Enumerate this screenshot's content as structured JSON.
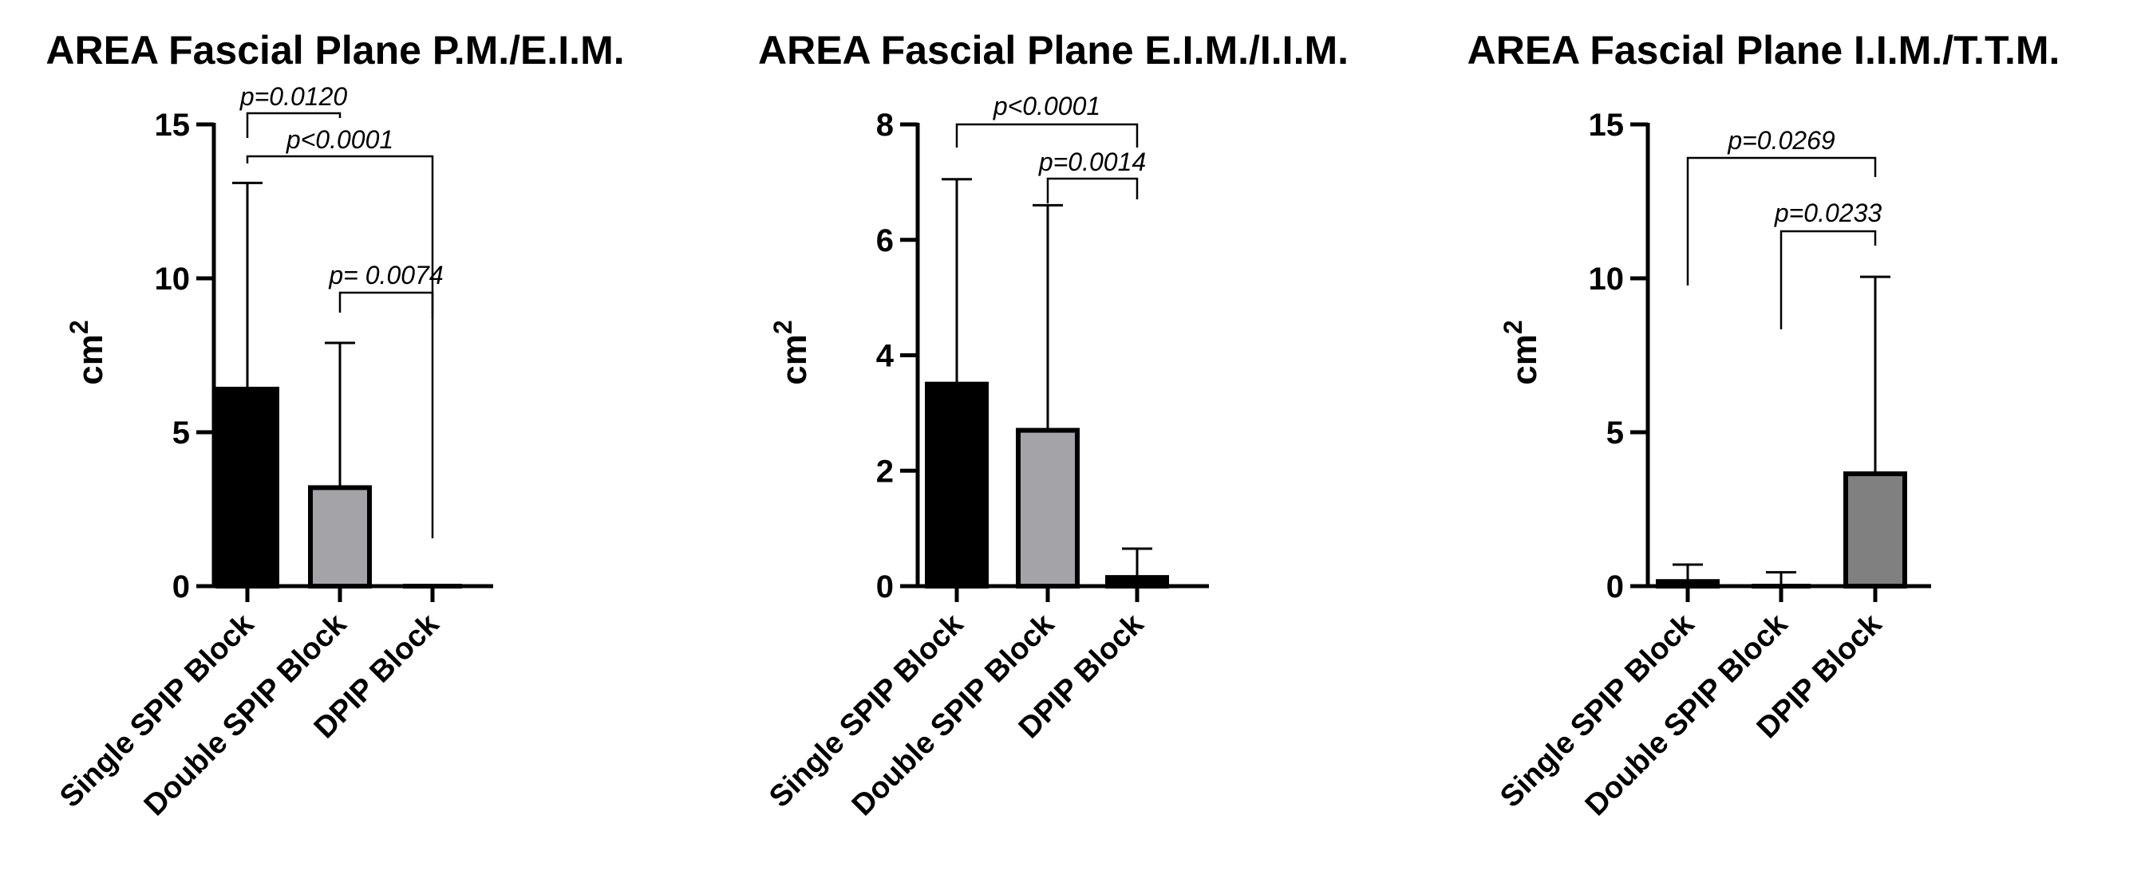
{
  "chart_data": [
    {
      "type": "bar",
      "title": "AREA Fascial Plane P.M./E.I.M.",
      "ylabel": "cm",
      "ylabel_superscript": "2",
      "categories": [
        "Single SPIP Block",
        "Double SPIP Block",
        "DPIP Block"
      ],
      "values": [
        6.4,
        3.2,
        0.0
      ],
      "error_upper": [
        13.1,
        7.9,
        0.0
      ],
      "bar_colors": [
        "#000000",
        "#a3a3a8",
        "#ffffff"
      ],
      "ylim": [
        0,
        15
      ],
      "yticks": [
        0,
        5,
        10,
        15
      ],
      "grid": false,
      "comparisons": [
        {
          "from": 0,
          "to": 1,
          "label": "p=0.0120"
        },
        {
          "from": 0,
          "to": 2,
          "label": "p<0.0001"
        },
        {
          "from": 1,
          "to": 2,
          "label": "p= 0.0074"
        }
      ]
    },
    {
      "type": "bar",
      "title": "AREA Fascial Plane E.I.M./I.I.M.",
      "ylabel": "cm",
      "ylabel_superscript": "2",
      "categories": [
        "Single SPIP Block",
        "Double SPIP Block",
        "DPIP Block"
      ],
      "values": [
        3.5,
        2.7,
        0.15
      ],
      "error_upper": [
        7.05,
        6.6,
        0.65
      ],
      "bar_colors": [
        "#000000",
        "#a3a3a8",
        "#000000"
      ],
      "ylim": [
        0,
        8
      ],
      "yticks": [
        0,
        2,
        4,
        6,
        8
      ],
      "grid": false,
      "comparisons": [
        {
          "from": 0,
          "to": 2,
          "label": "p<0.0001"
        },
        {
          "from": 1,
          "to": 2,
          "label": "p=0.0014"
        }
      ]
    },
    {
      "type": "bar",
      "title": "AREA Fascial Plane I.I.M./T.T.M.",
      "ylabel": "cm",
      "ylabel_superscript": "2",
      "categories": [
        "Single SPIP Block",
        "Double SPIP Block",
        "DPIP Block"
      ],
      "values": [
        0.15,
        0.0,
        3.65
      ],
      "error_upper": [
        0.7,
        0.45,
        10.05
      ],
      "bar_colors": [
        "#000000",
        "#000000",
        "#808080"
      ],
      "ylim": [
        0,
        15
      ],
      "yticks": [
        0,
        5,
        10,
        15
      ],
      "grid": false,
      "comparisons": [
        {
          "from": 0,
          "to": 2,
          "label": "p=0.0269"
        },
        {
          "from": 1,
          "to": 2,
          "label": "p=0.0233"
        }
      ]
    }
  ]
}
